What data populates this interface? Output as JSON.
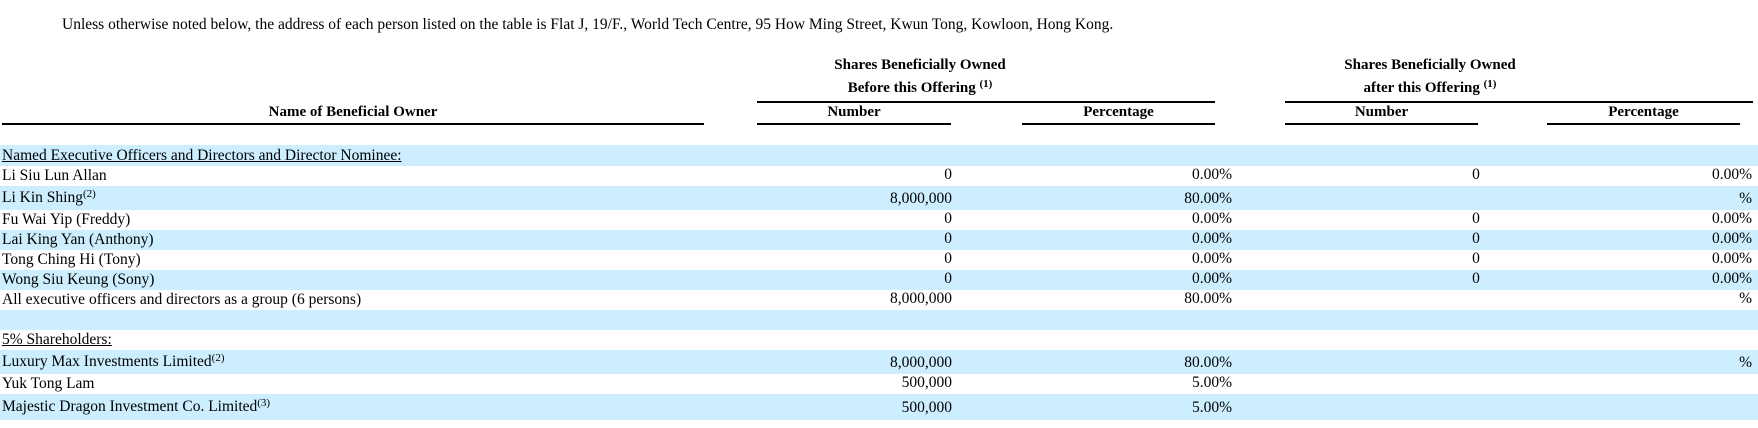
{
  "intro_text": "Unless otherwise noted below, the address of each person listed on the table is Flat J, 19/F., World Tech Centre, 95 How Ming Street, Kwun Tong, Kowloon, Hong Kong.",
  "headers": {
    "before_line1": "Shares Beneficially Owned",
    "before_line2": "Before this Offering",
    "before_note": "(1)",
    "after_line1": "Shares Beneficially Owned",
    "after_line2": "after this Offering",
    "after_note": "(1)",
    "name_col": "Name of Beneficial Owner",
    "number_before": "Number",
    "pct_before": "Percentage",
    "number_after": "Number",
    "pct_after": "Percentage"
  },
  "sections": {
    "officers_title": "Named Executive Officers and Directors and Director Nominee:",
    "shareholders_title": "5% Shareholders:"
  },
  "rows": [
    {
      "name": "Li Siu Lun Allan",
      "note": "",
      "num_before": "0",
      "pct_before": "0.00%",
      "num_after": "0",
      "pct_after": "0.00%"
    },
    {
      "name": "Li Kin Shing",
      "note": "(2)",
      "num_before": "8,000,000",
      "pct_before": "80.00%",
      "num_after": "",
      "pct_after": "%"
    },
    {
      "name": "Fu Wai Yip (Freddy)",
      "note": "",
      "num_before": "0",
      "pct_before": "0.00%",
      "num_after": "0",
      "pct_after": "0.00%"
    },
    {
      "name": "Lai King Yan (Anthony)",
      "note": "",
      "num_before": "0",
      "pct_before": "0.00%",
      "num_after": "0",
      "pct_after": "0.00%"
    },
    {
      "name": "Tong Ching Hi (Tony)",
      "note": "",
      "num_before": "0",
      "pct_before": "0.00%",
      "num_after": "0",
      "pct_after": "0.00%"
    },
    {
      "name": "Wong Siu Keung (Sony)",
      "note": "",
      "num_before": "0",
      "pct_before": "0.00%",
      "num_after": "0",
      "pct_after": "0.00%"
    },
    {
      "name": "All executive officers and directors as a group (6 persons)",
      "note": "",
      "num_before": "8,000,000",
      "pct_before": "80.00%",
      "num_after": "",
      "pct_after": "%"
    },
    {
      "name": "Luxury Max Investments Limited",
      "note": "(2)",
      "num_before": "8,000,000",
      "pct_before": "80.00%",
      "num_after": "",
      "pct_after": "%"
    },
    {
      "name": "Yuk Tong Lam",
      "note": "",
      "num_before": "500,000",
      "pct_before": "5.00%",
      "num_after": "",
      "pct_after": ""
    },
    {
      "name": "Majestic Dragon Investment Co. Limited",
      "note": "(3)",
      "num_before": "500,000",
      "pct_before": "5.00%",
      "num_after": "",
      "pct_after": ""
    }
  ]
}
